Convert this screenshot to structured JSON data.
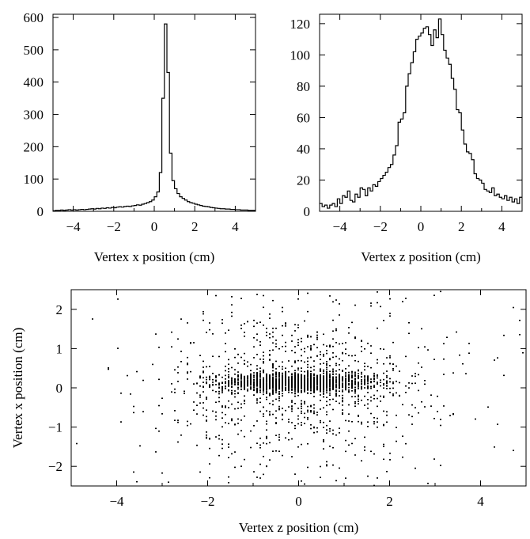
{
  "chart_data": [
    {
      "id": "hist-x",
      "type": "bar",
      "xlabel": "Vertex x position (cm)",
      "ylabel": "",
      "xlim": [
        -5,
        5
      ],
      "ylim": [
        0,
        610
      ],
      "xticks": [
        "−4",
        "−2",
        "0",
        "2",
        "4"
      ],
      "yticks": [
        "0",
        "100",
        "200",
        "300",
        "400",
        "500",
        "600"
      ],
      "bin_width": 0.125,
      "x_start": -5.0,
      "values": [
        2,
        3,
        3,
        4,
        3,
        4,
        5,
        4,
        5,
        4,
        5,
        6,
        5,
        6,
        7,
        8,
        7,
        9,
        8,
        10,
        9,
        11,
        10,
        12,
        11,
        13,
        14,
        13,
        15,
        16,
        15,
        17,
        18,
        20,
        19,
        22,
        24,
        27,
        30,
        35,
        45,
        60,
        120,
        350,
        580,
        430,
        180,
        95,
        70,
        55,
        45,
        40,
        35,
        30,
        27,
        25,
        22,
        20,
        18,
        16,
        15,
        14,
        12,
        11,
        10,
        9,
        8,
        8,
        7,
        7,
        6,
        6,
        5,
        5,
        4,
        4,
        4,
        3,
        3,
        3
      ]
    },
    {
      "id": "hist-z",
      "type": "bar",
      "xlabel": "Vertex z position (cm)",
      "ylabel": "",
      "xlim": [
        -5,
        5
      ],
      "ylim": [
        0,
        126
      ],
      "xticks": [
        "−4",
        "−2",
        "0",
        "2",
        "4"
      ],
      "yticks": [
        "0",
        "20",
        "40",
        "60",
        "80",
        "100",
        "120"
      ],
      "bin_width": 0.125,
      "x_start": -5.0,
      "values": [
        5,
        3,
        4,
        2,
        4,
        5,
        3,
        8,
        5,
        10,
        9,
        13,
        7,
        6,
        11,
        9,
        15,
        14,
        10,
        15,
        13,
        17,
        16,
        19,
        21,
        23,
        25,
        28,
        30,
        36,
        42,
        57,
        59,
        63,
        80,
        88,
        95,
        102,
        110,
        112,
        114,
        117,
        118,
        113,
        106,
        116,
        111,
        123,
        113,
        103,
        98,
        94,
        85,
        78,
        65,
        63,
        52,
        43,
        38,
        37,
        33,
        24,
        21,
        20,
        18,
        14,
        13,
        12,
        15,
        10,
        11,
        9,
        8,
        10,
        7,
        9,
        6,
        8,
        5,
        9
      ]
    },
    {
      "id": "scatter-zx",
      "type": "scatter",
      "xlabel": "Vertex z position (cm)",
      "ylabel": "Vertex x position (cm)",
      "xlim": [
        -5,
        5
      ],
      "ylim": [
        -2.5,
        2.5
      ],
      "xticks": [
        "−4",
        "−2",
        "0",
        "2",
        "4"
      ],
      "yticks": [
        "−2",
        "−1",
        "0",
        "1",
        "2"
      ],
      "clusters": [
        {
          "n": 1700,
          "cx": 0,
          "sx": 0.85,
          "cy": 0.15,
          "sy": 0.12
        },
        {
          "n": 650,
          "cx": 0,
          "sx": 1.3,
          "cy": 0.1,
          "sy": 0.9
        },
        {
          "n": 420,
          "cx": 0,
          "sx": 2.6,
          "cy": 0,
          "sy": 1.5
        }
      ]
    }
  ]
}
